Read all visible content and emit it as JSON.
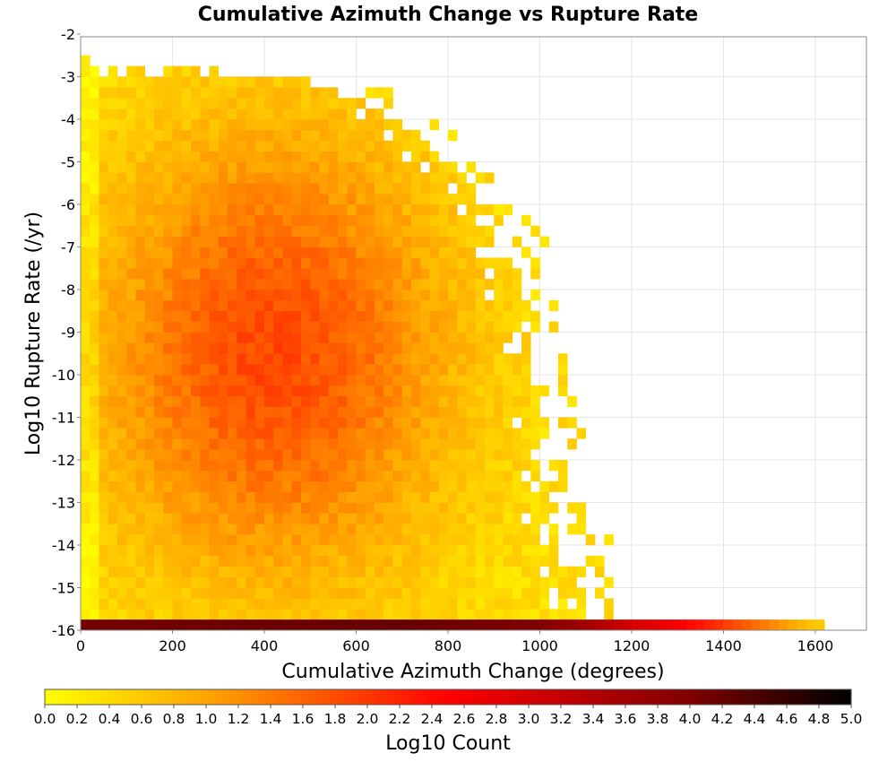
{
  "chart_data": {
    "type": "heatmap",
    "title": "Cumulative Azimuth Change vs Rupture Rate",
    "xlabel": "Cumulative Azimuth Change (degrees)",
    "ylabel": "Log10 Rupture Rate (/yr)",
    "xlim": [
      0,
      1700
    ],
    "ylim": [
      -16,
      -2
    ],
    "x_ticks": [
      "0",
      "200",
      "400",
      "600",
      "800",
      "1000",
      "1200",
      "1400",
      "1600"
    ],
    "x_tick_values": [
      0,
      200,
      400,
      600,
      800,
      1000,
      1200,
      1400,
      1600
    ],
    "y_ticks": [
      "-2",
      "-3",
      "-4",
      "-5",
      "-6",
      "-7",
      "-8",
      "-9",
      "-10",
      "-11",
      "-12",
      "-13",
      "-14",
      "-15",
      "-16"
    ],
    "y_tick_values": [
      -2,
      -3,
      -4,
      -5,
      -6,
      -7,
      -8,
      -9,
      -10,
      -11,
      -12,
      -13,
      -14,
      -15,
      -16
    ],
    "bin_width_x": 20,
    "bin_height_y": 0.25,
    "grid": true,
    "colorbar": {
      "label": "Log10 Count",
      "range": [
        0,
        5
      ],
      "ticks": [
        "0.0",
        "0.2",
        "0.4",
        "0.6",
        "0.8",
        "1.0",
        "1.2",
        "1.4",
        "1.6",
        "1.8",
        "2.0",
        "2.2",
        "2.4",
        "2.6",
        "2.8",
        "3.0",
        "3.2",
        "3.4",
        "3.6",
        "3.8",
        "4.0",
        "4.2",
        "4.4",
        "4.6",
        "4.8",
        "5.0"
      ],
      "colors": [
        "#ffff00",
        "#ffa500",
        "#ff0000",
        "#800000",
        "#000000"
      ],
      "color_stops": [
        0,
        1,
        2.5,
        4,
        5
      ]
    },
    "bottom_row": {
      "y_bin": -16,
      "x_end": 1620,
      "values_by_x": [
        [
          0,
          4.1
        ],
        [
          700,
          4.2
        ],
        [
          1000,
          4.0
        ],
        [
          1100,
          3.6
        ],
        [
          1200,
          3.0
        ],
        [
          1300,
          2.6
        ],
        [
          1400,
          2.0
        ],
        [
          1500,
          1.3
        ],
        [
          1600,
          0.6
        ]
      ]
    },
    "density_model": {
      "note_peak_x": 420,
      "peak_y": -9.5,
      "peak_value": 1.85,
      "edge_value": 0.3,
      "envelope_x_max_by_y": [
        [
          -16,
          1120
        ],
        [
          -15,
          1060
        ],
        [
          -14,
          1040
        ],
        [
          -13,
          1020
        ],
        [
          -12,
          1000
        ],
        [
          -11,
          1000
        ],
        [
          -10,
          980
        ],
        [
          -9,
          970
        ],
        [
          -8,
          960
        ],
        [
          -7,
          920
        ],
        [
          -6,
          870
        ],
        [
          -5,
          780
        ],
        [
          -4,
          700
        ],
        [
          -3,
          480
        ],
        [
          -2.5,
          0
        ]
      ],
      "envelope_min_y": -3.0
    }
  }
}
